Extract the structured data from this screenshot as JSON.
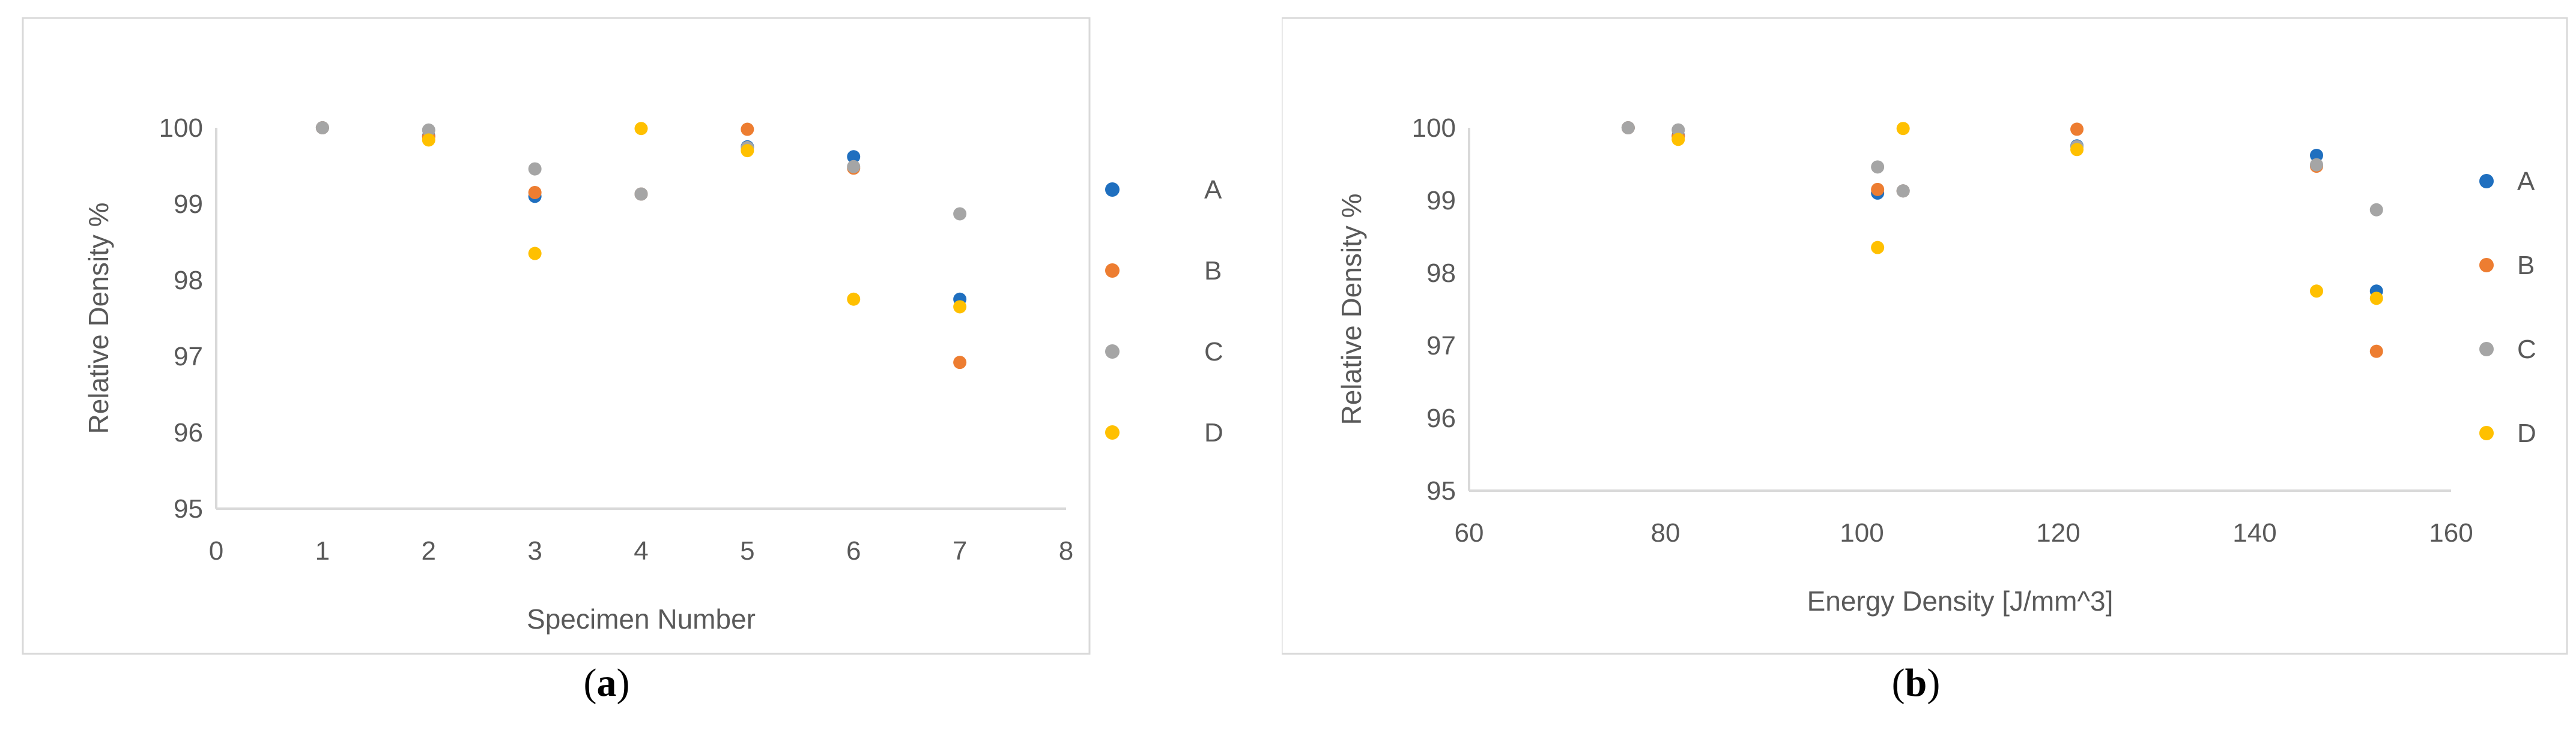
{
  "chart_data": [
    {
      "type": "scatter",
      "caption_letter": "a",
      "xlabel": "Specimen Number",
      "ylabel": "Relative Density %",
      "xlim": [
        0,
        8
      ],
      "ylim": [
        95,
        100
      ],
      "xticks": [
        "0",
        "1",
        "2",
        "3",
        "4",
        "5",
        "6",
        "7",
        "8"
      ],
      "yticks": [
        "95",
        "96",
        "97",
        "98",
        "99",
        "100"
      ],
      "grid": false,
      "legend_position": "right",
      "series": [
        {
          "name": "A",
          "color": "#1f6fbf",
          "points": [
            [
              1,
              100.0
            ],
            [
              2,
              99.89
            ],
            [
              3,
              99.1
            ],
            [
              4,
              99.13
            ],
            [
              5,
              99.75
            ],
            [
              6,
              99.62
            ],
            [
              7,
              97.75
            ]
          ]
        },
        {
          "name": "B",
          "color": "#ed7d31",
          "points": [
            [
              1,
              100.0
            ],
            [
              2,
              99.88
            ],
            [
              3,
              99.15
            ],
            [
              4,
              99.13
            ],
            [
              5,
              99.98
            ],
            [
              6,
              99.47
            ],
            [
              7,
              96.92
            ]
          ]
        },
        {
          "name": "C",
          "color": "#a5a5a5",
          "points": [
            [
              1,
              100.0
            ],
            [
              2,
              99.97
            ],
            [
              3,
              99.46
            ],
            [
              4,
              99.13
            ],
            [
              5,
              99.74
            ],
            [
              6,
              99.49
            ],
            [
              7,
              98.87
            ]
          ]
        },
        {
          "name": "D",
          "color": "#ffc000",
          "points": [
            [
              2,
              99.84
            ],
            [
              3,
              98.35
            ],
            [
              4,
              99.99
            ],
            [
              5,
              99.7
            ],
            [
              6,
              97.75
            ],
            [
              7,
              97.65
            ]
          ]
        }
      ]
    },
    {
      "type": "scatter",
      "caption_letter": "b",
      "xlabel": "Energy Density [J/mm^3]",
      "ylabel": "Relative Density %",
      "xlim": [
        60,
        160
      ],
      "ylim": [
        95,
        100
      ],
      "xticks": [
        "60",
        "80",
        "100",
        "120",
        "140",
        "160"
      ],
      "yticks": [
        "95",
        "96",
        "97",
        "98",
        "99",
        "100"
      ],
      "grid": false,
      "legend_position": "right",
      "series": [
        {
          "name": "A",
          "color": "#1f6fbf",
          "points": [
            [
              76.2,
              100.0
            ],
            [
              81.3,
              99.89
            ],
            [
              101.6,
              99.1
            ],
            [
              104.2,
              99.13
            ],
            [
              121.9,
              99.75
            ],
            [
              146.3,
              99.62
            ],
            [
              152.4,
              97.75
            ]
          ]
        },
        {
          "name": "B",
          "color": "#ed7d31",
          "points": [
            [
              76.2,
              100.0
            ],
            [
              81.3,
              99.88
            ],
            [
              101.6,
              99.15
            ],
            [
              104.2,
              99.13
            ],
            [
              121.9,
              99.98
            ],
            [
              146.3,
              99.47
            ],
            [
              152.4,
              96.92
            ]
          ]
        },
        {
          "name": "C",
          "color": "#a5a5a5",
          "points": [
            [
              76.2,
              100.0
            ],
            [
              81.3,
              99.97
            ],
            [
              101.6,
              99.46
            ],
            [
              104.2,
              99.13
            ],
            [
              121.9,
              99.74
            ],
            [
              146.3,
              99.49
            ],
            [
              152.4,
              98.87
            ]
          ]
        },
        {
          "name": "D",
          "color": "#ffc000",
          "points": [
            [
              81.3,
              99.84
            ],
            [
              101.6,
              98.35
            ],
            [
              104.2,
              99.99
            ],
            [
              121.9,
              99.7
            ],
            [
              146.3,
              97.75
            ],
            [
              152.4,
              97.65
            ]
          ]
        }
      ]
    }
  ]
}
